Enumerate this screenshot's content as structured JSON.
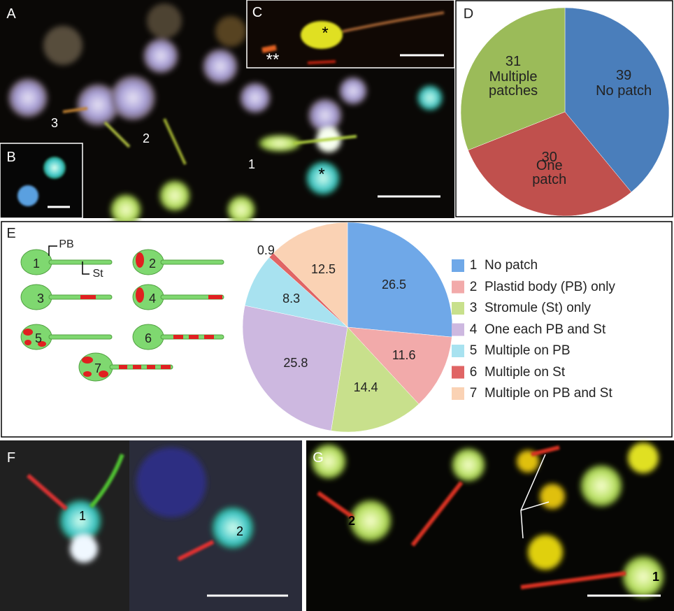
{
  "panels": [
    "A",
    "B",
    "C",
    "D",
    "E",
    "F",
    "G"
  ],
  "annotations": {
    "A": [
      "3",
      "2",
      "1",
      "*"
    ],
    "C": [
      "*",
      "**"
    ],
    "E": [
      "PB",
      "St"
    ],
    "F": [
      "1",
      "2"
    ],
    "G": [
      "2",
      "1"
    ]
  },
  "chart_data": [
    {
      "type": "pie",
      "categories": [
        "No patch",
        "One patch",
        "Multiple patches"
      ],
      "values": [
        39,
        30,
        31
      ],
      "colors": [
        "#4a7ebb",
        "#c0504d",
        "#9bbb59"
      ]
    },
    {
      "type": "pie",
      "markers": [
        "1",
        "2",
        "3",
        "4",
        "5",
        "6",
        "7"
      ],
      "categories": [
        "No patch",
        "Plastid body (PB) only",
        "Stromule (St) only",
        "One each PB and St",
        "Multiple on PB",
        "Multiple on St",
        "Multiple on PB and St"
      ],
      "values": [
        26.5,
        11.6,
        14.4,
        25.8,
        8.3,
        0.9,
        12.5
      ],
      "colors": [
        "#6fa8e8",
        "#f2aaaa",
        "#c8e08c",
        "#cdb8e0",
        "#a8e2f0",
        "#e06565",
        "#fad2b4"
      ]
    }
  ]
}
